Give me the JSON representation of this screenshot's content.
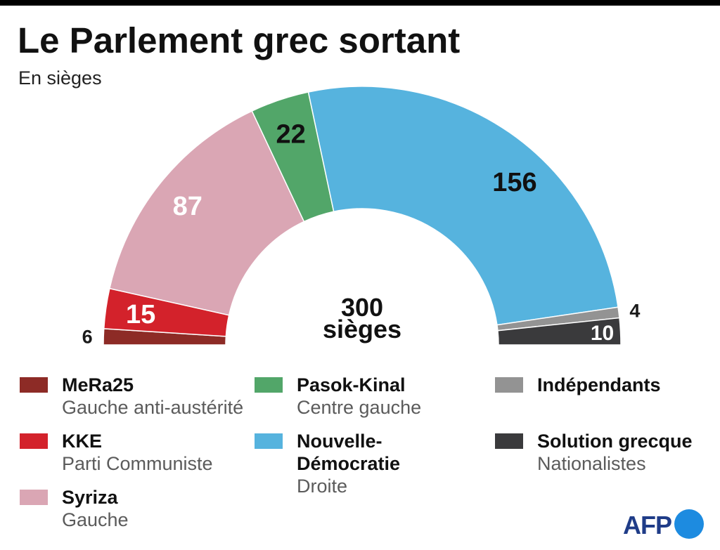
{
  "chart_data": {
    "type": "pie",
    "title": "Le Parlement grec sortant",
    "subtitle": "En sièges",
    "center_label": {
      "value": "300",
      "unit": "sièges"
    },
    "categories": [
      "MeRa25",
      "KKE",
      "Syriza",
      "Pasok-Kinal",
      "Nouvelle-Démocratie",
      "Indépendants",
      "Solution grecque"
    ],
    "category_notes": [
      "Gauche anti-austérité",
      "Parti Communiste",
      "Gauche",
      "Centre gauche",
      "Droite",
      "",
      "Nationalistes"
    ],
    "values": [
      6,
      15,
      87,
      22,
      156,
      4,
      10
    ],
    "colors": [
      "#8d2b26",
      "#d3222b",
      "#daa6b4",
      "#52a669",
      "#56b3de",
      "#939393",
      "#3a3a3c"
    ],
    "value_label_colors": [
      "#1a1a1a",
      "#ffffff",
      "#ffffff",
      "#111111",
      "#111111",
      "#1a1a1a",
      "#ffffff"
    ],
    "legend_placement": "bottom"
  },
  "logo": {
    "text": "AFP"
  }
}
